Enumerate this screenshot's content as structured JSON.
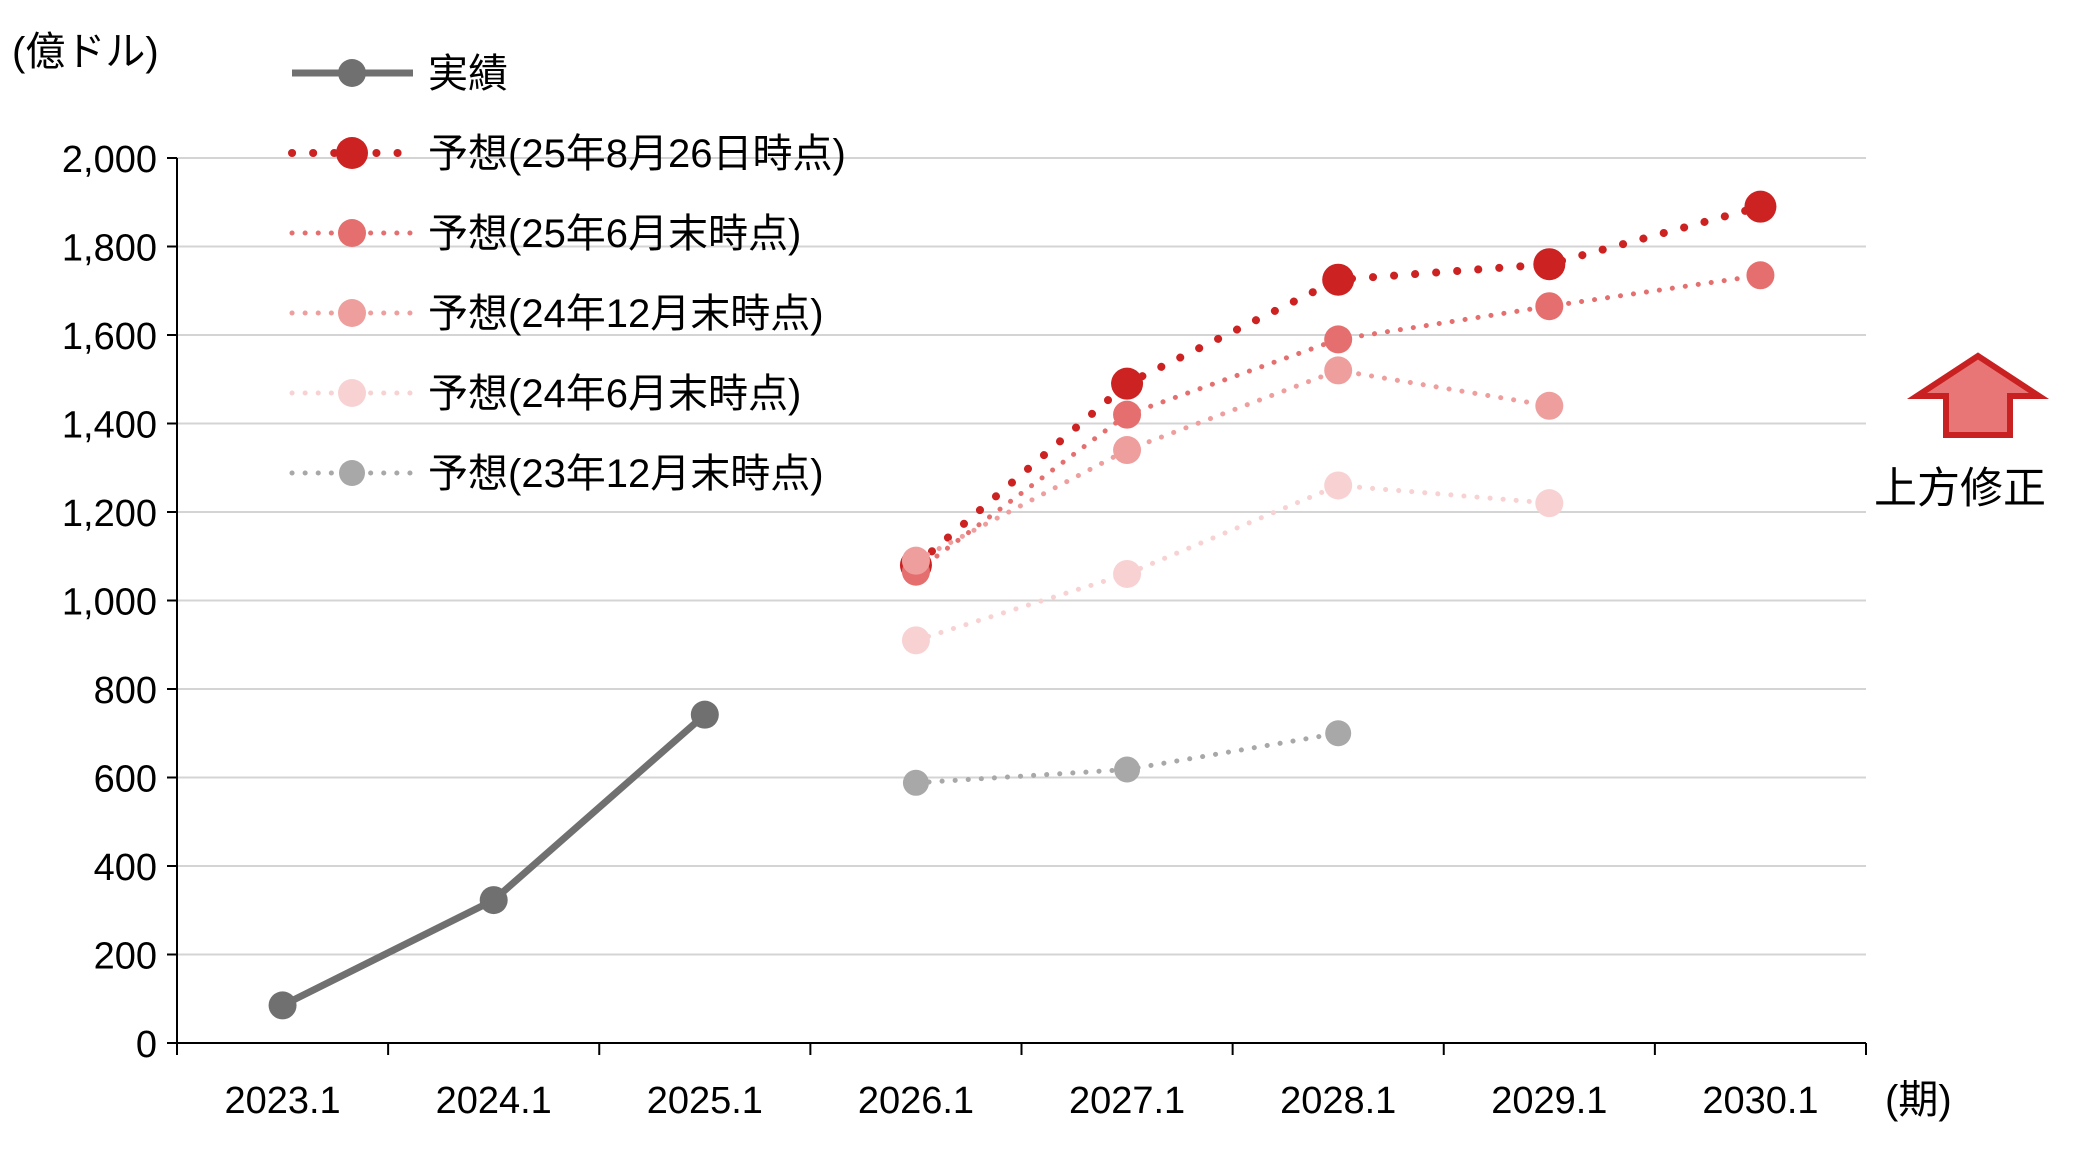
{
  "chart_data": {
    "type": "line",
    "ylabel": "(億ドル)",
    "xlabel": "(期)",
    "categories": [
      "2023.1",
      "2024.1",
      "2025.1",
      "2026.1",
      "2027.1",
      "2028.1",
      "2029.1",
      "2030.1"
    ],
    "ylim": [
      0,
      2000
    ],
    "yticks": [
      0,
      200,
      400,
      600,
      800,
      1000,
      1200,
      1400,
      1600,
      1800,
      2000
    ],
    "ytick_labels": [
      "0",
      "200",
      "400",
      "600",
      "800",
      "1,000",
      "1,200",
      "1,400",
      "1,600",
      "1,800",
      "2,000"
    ],
    "grid": true,
    "legend_position": "top-left",
    "series": [
      {
        "name": "実績",
        "color": "#707070",
        "style": "solid",
        "values": [
          85,
          323,
          742,
          null,
          null,
          null,
          null,
          null
        ]
      },
      {
        "name": "予想(25年8月26日時点)",
        "color": "#cc2222",
        "style": "dotted",
        "values": [
          null,
          null,
          null,
          1080,
          1490,
          1725,
          1760,
          1890
        ]
      },
      {
        "name": "予想(25年6月末時点)",
        "color": "#e56f6f",
        "style": "dotted",
        "values": [
          null,
          null,
          null,
          1065,
          1420,
          1590,
          1665,
          1735
        ]
      },
      {
        "name": "予想(24年12月末時点)",
        "color": "#ef9e9e",
        "style": "dotted",
        "values": [
          null,
          null,
          null,
          1090,
          1340,
          1520,
          1440,
          null
        ]
      },
      {
        "name": "予想(24年6月末時点)",
        "color": "#f8d2d2",
        "style": "dotted",
        "values": [
          null,
          null,
          null,
          910,
          1060,
          1260,
          1220,
          null
        ]
      },
      {
        "name": "予想(23年12月末時点)",
        "color": "#a8a8a8",
        "style": "dotted",
        "values": [
          null,
          null,
          null,
          588,
          618,
          700,
          null,
          null
        ]
      }
    ],
    "annotation": {
      "text": "上方修正",
      "icon": "up-arrow-icon",
      "color": "#e97676"
    }
  }
}
